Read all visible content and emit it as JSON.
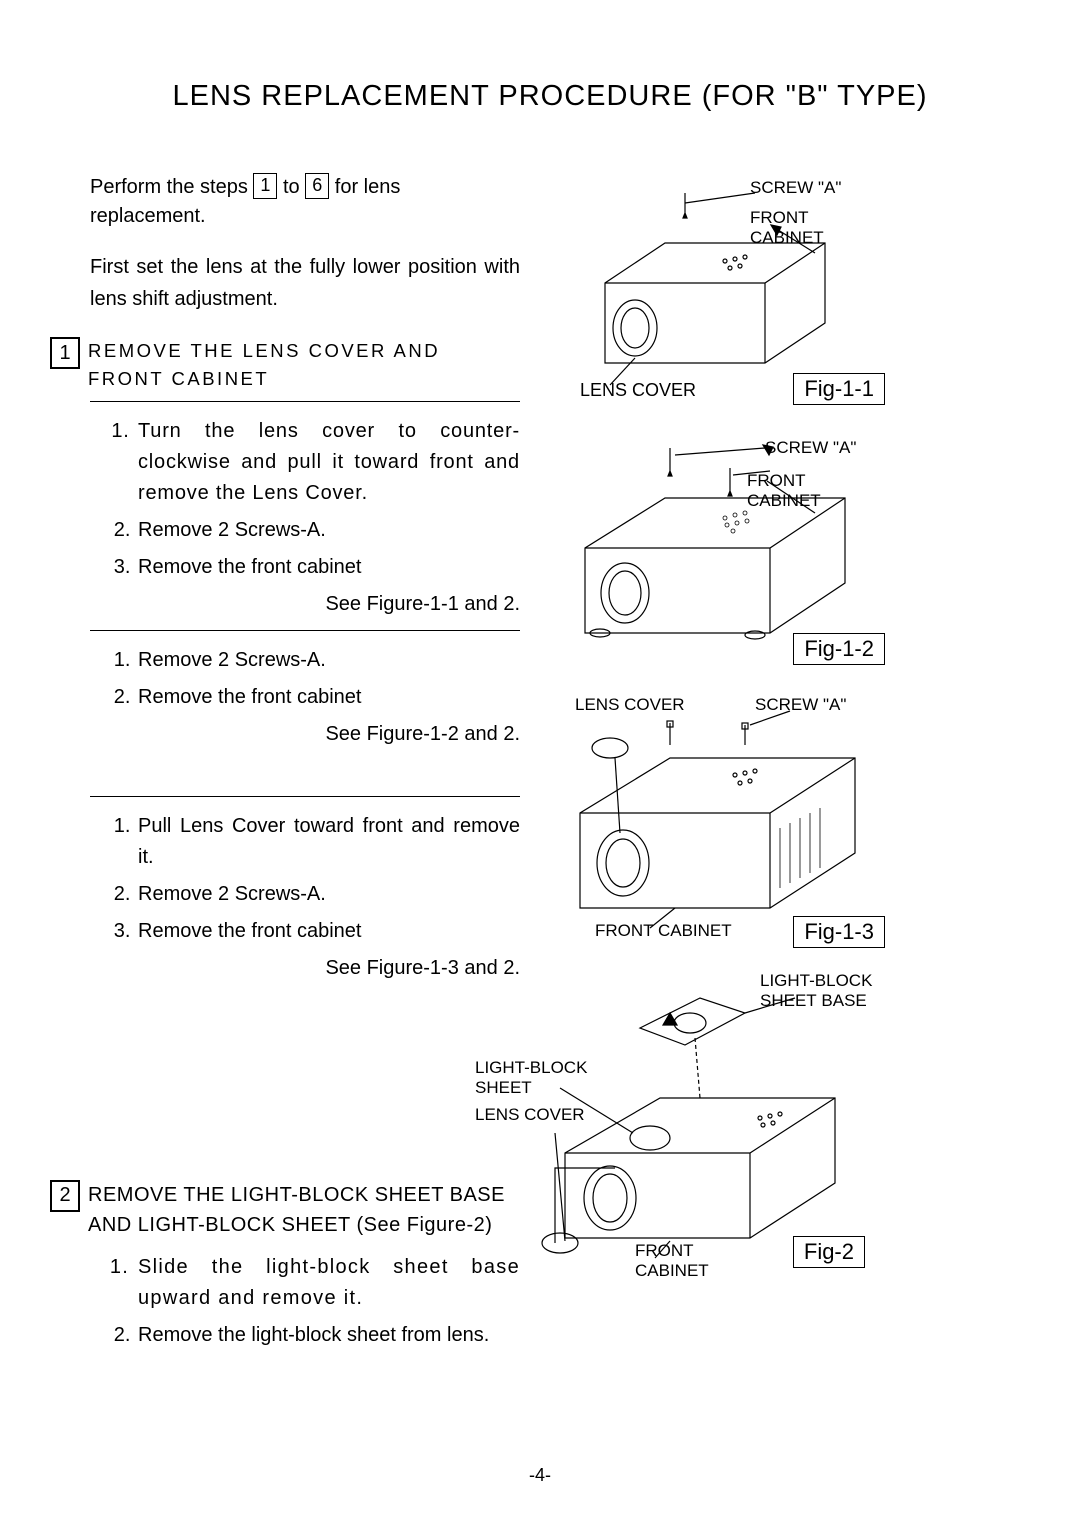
{
  "title": "LENS REPLACEMENT PROCEDURE (FOR \"B\" TYPE)",
  "intro_line1_a": "Perform the steps ",
  "intro_line1_b": " to ",
  "intro_line1_c": " for lens replacement.",
  "step_from": "1",
  "step_to": "6",
  "intro_line2": "First set the lens at the fully lower position with lens shift adjustment.",
  "section1": {
    "num": "1",
    "title": "REMOVE THE LENS COVER AND FRONT CABINET",
    "block1": {
      "items": [
        "Turn the lens cover to counter-clockwise and pull it toward front and remove the Lens Cover.",
        "Remove 2 Screws-A.",
        "Remove the front cabinet"
      ],
      "see": "See Figure-1-1 and 2."
    },
    "block2": {
      "items": [
        "Remove 2 Screws-A.",
        "Remove the front cabinet"
      ],
      "see": "See Figure-1-2 and 2."
    },
    "block3": {
      "items": [
        "Pull Lens Cover toward front and remove it.",
        "Remove 2 Screws-A.",
        "Remove the front cabinet"
      ],
      "see": "See Figure-1-3 and 2."
    }
  },
  "section2": {
    "num": "2",
    "title": "REMOVE THE LIGHT-BLOCK SHEET BASE AND LIGHT-BLOCK SHEET (See Figure-2)",
    "items": [
      "Slide the light-block sheet base upward and remove it.",
      "Remove the light-block sheet from lens."
    ]
  },
  "figures": {
    "f11": {
      "id": "Fig-1-1",
      "labels": [
        "SCREW \"A\"",
        "FRONT CABINET",
        "LENS COVER"
      ]
    },
    "f12": {
      "id": "Fig-1-2",
      "labels": [
        "SCREW \"A\"",
        "FRONT CABINET"
      ]
    },
    "f13": {
      "id": "Fig-1-3",
      "labels": [
        "LENS COVER",
        "SCREW \"A\"",
        "FRONT CABINET"
      ]
    },
    "f2": {
      "id": "Fig-2",
      "labels": [
        "LIGHT-BLOCK SHEET BASE",
        "LIGHT-BLOCK SHEET",
        "LENS COVER",
        "FRONT CABINET"
      ]
    }
  },
  "pagenum": "-4-",
  "diagram_style": {
    "stroke": "#000000",
    "stroke_width": 1.2,
    "fill": "none",
    "arrow_fill": "#000000"
  }
}
